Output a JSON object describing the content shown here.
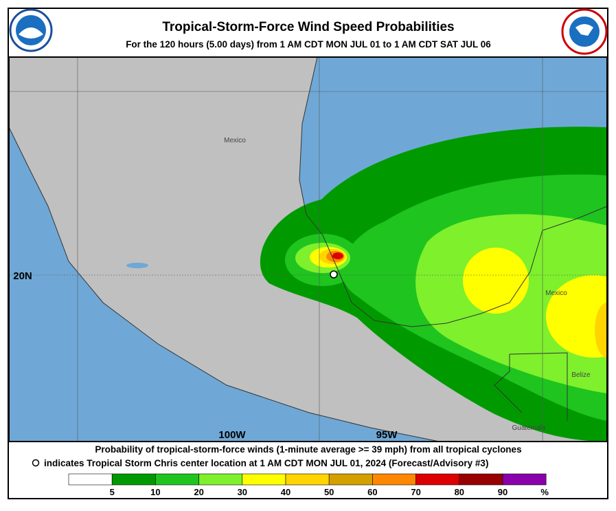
{
  "header": {
    "title": "Tropical-Storm-Force Wind Speed Probabilities",
    "subtitle": "For the 120 hours (5.00 days) from 1 AM CDT MON JUL 01 to 1 AM CDT SAT JUL 06"
  },
  "map": {
    "places": [
      "Mexico",
      "Mexico",
      "Belize",
      "Guatemala"
    ],
    "latitudes": [
      "20N"
    ],
    "longitudes": [
      "100W",
      "95W"
    ]
  },
  "caption": {
    "line1": "Probability of tropical-storm-force winds (1-minute average >= 39 mph) from all tropical cyclones",
    "line2": "indicates Tropical Storm Chris center location at 1 AM CDT MON JUL 01, 2024 (Forecast/Advisory #3)"
  },
  "legend": {
    "colors": [
      "#ffffff",
      "#009a00",
      "#1fc41f",
      "#7ef02c",
      "#ffff00",
      "#ffd400",
      "#d4a000",
      "#ff8800",
      "#dd0000",
      "#990000",
      "#8a00aa"
    ],
    "ticks": [
      5,
      10,
      20,
      30,
      40,
      50,
      60,
      70,
      80,
      90
    ],
    "unit": "%"
  }
}
